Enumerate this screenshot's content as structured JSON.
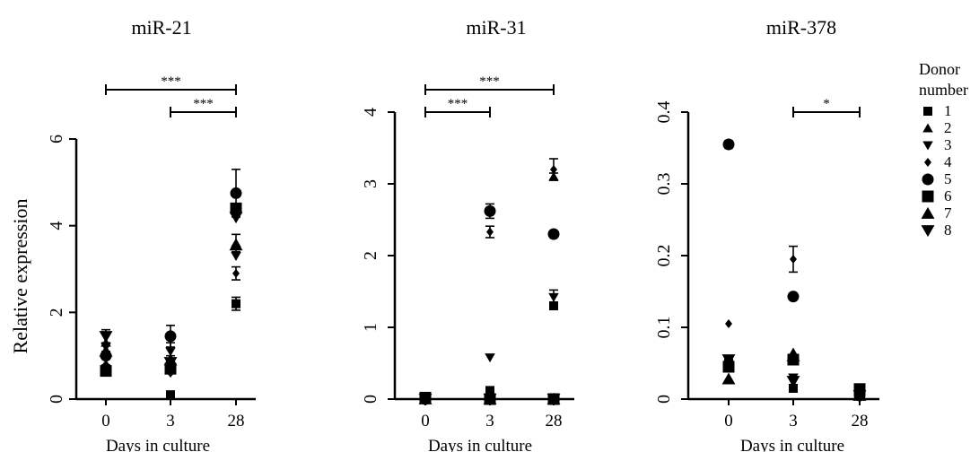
{
  "legend": {
    "title": "Donor number",
    "entries": [
      {
        "label": "1",
        "marker": "square-small"
      },
      {
        "label": "2",
        "marker": "triangle-up-small"
      },
      {
        "label": "3",
        "marker": "triangle-down-small"
      },
      {
        "label": "4",
        "marker": "diamond-small"
      },
      {
        "label": "5",
        "marker": "circle"
      },
      {
        "label": "6",
        "marker": "square"
      },
      {
        "label": "7",
        "marker": "triangle-up"
      },
      {
        "label": "8",
        "marker": "triangle-down"
      }
    ]
  },
  "chart_data": [
    {
      "type": "scatter",
      "title": "miR-21",
      "xlabel": "Days in culture",
      "ylabel": "Relative expression",
      "categories": [
        "0",
        "3",
        "28"
      ],
      "ylim": [
        0,
        6
      ],
      "yticks": [
        "0",
        "2",
        "4",
        "6"
      ],
      "series": [
        {
          "name": "1",
          "values": [
            0.7,
            0.1,
            2.2
          ],
          "err": [
            0,
            0,
            0.15
          ]
        },
        {
          "name": "2",
          "values": [
            1.3,
            0.8,
            3.6
          ],
          "err": [
            0.2,
            0.2,
            0.2
          ]
        },
        {
          "name": "3",
          "values": [
            1.2,
            1.1,
            3.3
          ],
          "err": [
            0,
            0.2,
            0
          ]
        },
        {
          "name": "4",
          "values": [
            0.8,
            0.6,
            2.9
          ],
          "err": [
            0,
            0,
            0.15
          ]
        },
        {
          "name": "5",
          "values": [
            1.0,
            1.45,
            4.75
          ],
          "err": [
            0,
            0.25,
            0.55
          ]
        },
        {
          "name": "6",
          "values": [
            0.65,
            0.7,
            4.4
          ],
          "err": [
            0.1,
            0.1,
            0
          ]
        },
        {
          "name": "7",
          "values": [
            1.1,
            0.9,
            3.55
          ],
          "err": [
            0,
            0,
            0
          ]
        },
        {
          "name": "8",
          "values": [
            1.45,
            0.85,
            4.2
          ],
          "err": [
            0.15,
            0,
            0
          ]
        }
      ],
      "significance": [
        {
          "from": "0",
          "to": "28",
          "label": "***"
        },
        {
          "from": "3",
          "to": "28",
          "label": "***"
        }
      ]
    },
    {
      "type": "scatter",
      "title": "miR-31",
      "xlabel": "Days in culture",
      "ylabel": "",
      "categories": [
        "0",
        "3",
        "28"
      ],
      "ylim": [
        0,
        4
      ],
      "yticks": [
        "0",
        "1",
        "2",
        "3",
        "4"
      ],
      "series": [
        {
          "name": "1",
          "values": [
            0.0,
            0.12,
            1.3
          ],
          "err": [
            0,
            0,
            0
          ]
        },
        {
          "name": "2",
          "values": [
            0.0,
            0.0,
            3.1
          ],
          "err": [
            0,
            0,
            0.05
          ]
        },
        {
          "name": "3",
          "values": [
            0.0,
            0.58,
            1.42
          ],
          "err": [
            0,
            0,
            0.1
          ]
        },
        {
          "name": "4",
          "values": [
            0.0,
            2.33,
            3.2
          ],
          "err": [
            0,
            0.08,
            0.15
          ]
        },
        {
          "name": "5",
          "values": [
            0.0,
            2.62,
            2.3
          ],
          "err": [
            0,
            0.1,
            0
          ]
        },
        {
          "name": "6",
          "values": [
            0.02,
            0.0,
            0.0
          ],
          "err": [
            0,
            0,
            0
          ]
        },
        {
          "name": "7",
          "values": [
            0.0,
            0.0,
            0.0
          ],
          "err": [
            0,
            0,
            0
          ]
        },
        {
          "name": "8",
          "values": [
            0.0,
            0.0,
            0.0
          ],
          "err": [
            0,
            0,
            0
          ]
        }
      ],
      "significance": [
        {
          "from": "0",
          "to": "28",
          "label": "***"
        },
        {
          "from": "0",
          "to": "3",
          "label": "***"
        }
      ]
    },
    {
      "type": "scatter",
      "title": "miR-378",
      "xlabel": "Days in culture",
      "ylabel": "",
      "categories": [
        "0",
        "3",
        "28"
      ],
      "ylim": [
        0,
        0.4
      ],
      "yticks": [
        "0",
        "0.1",
        "0.2",
        "0.3",
        "0.4"
      ],
      "series": [
        {
          "name": "1",
          "values": [
            0.05,
            0.015,
            0.005
          ],
          "err": [
            0,
            0,
            0
          ]
        },
        {
          "name": "2",
          "values": [
            0.055,
            0.065,
            0.01
          ],
          "err": [
            0,
            0,
            0
          ]
        },
        {
          "name": "3",
          "values": [
            0.048,
            0.03,
            0.005
          ],
          "err": [
            0,
            0,
            0
          ]
        },
        {
          "name": "4",
          "values": [
            0.105,
            0.195,
            0.008
          ],
          "err": [
            0,
            0.018,
            0
          ]
        },
        {
          "name": "5",
          "values": [
            0.355,
            0.143,
            0.005
          ],
          "err": [
            0.005,
            0,
            0
          ]
        },
        {
          "name": "6",
          "values": [
            0.045,
            0.055,
            0.014
          ],
          "err": [
            0,
            0,
            0
          ]
        },
        {
          "name": "7",
          "values": [
            0.028,
            0.06,
            0.005
          ],
          "err": [
            0,
            0,
            0
          ]
        },
        {
          "name": "8",
          "values": [
            0.055,
            0.025,
            0.005
          ],
          "err": [
            0,
            0,
            0
          ]
        }
      ],
      "significance": [
        {
          "from": "3",
          "to": "28",
          "label": "*"
        }
      ]
    }
  ]
}
